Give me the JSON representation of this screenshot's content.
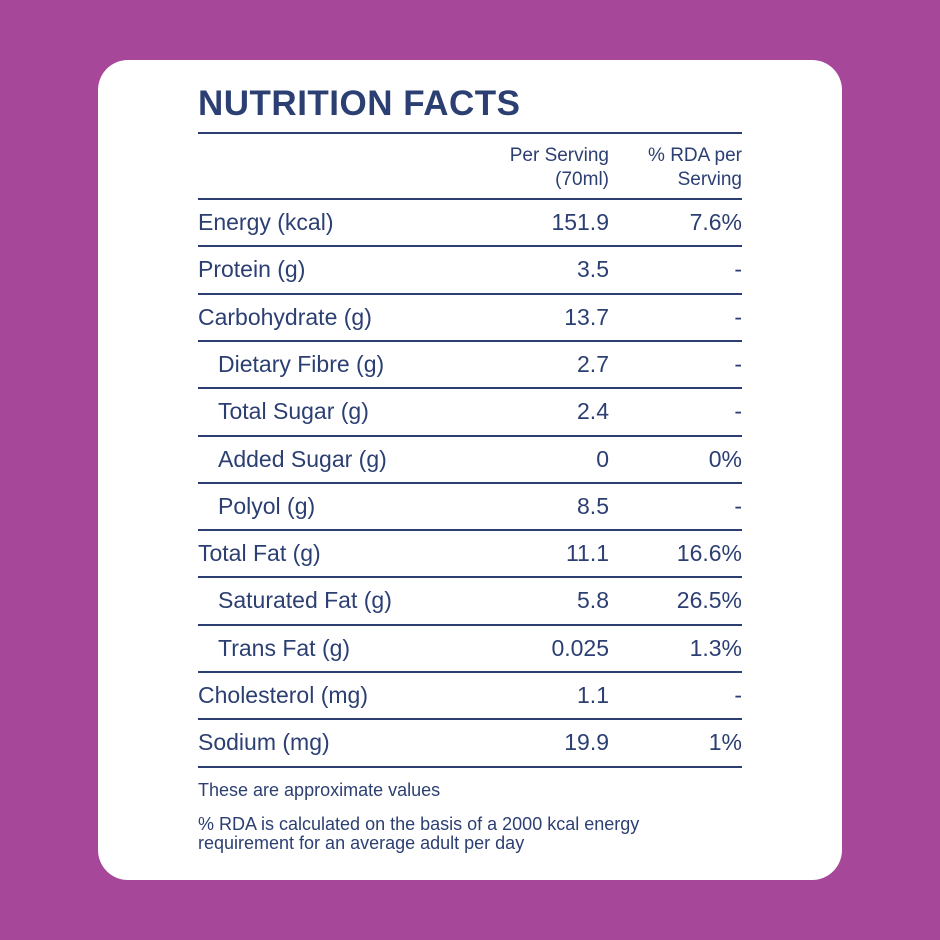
{
  "header": {
    "title": "NUTRITION FACTS"
  },
  "table": {
    "columns": [
      [
        "Per Serving",
        "(70ml)"
      ],
      [
        "% RDA per",
        "Serving"
      ]
    ],
    "rows": [
      {
        "label": "Energy (kcal)",
        "value": "151.9",
        "rda": "7.6%",
        "indent": false
      },
      {
        "label": "Protein (g)",
        "value": "3.5",
        "rda": "-",
        "indent": false
      },
      {
        "label": "Carbohydrate (g)",
        "value": "13.7",
        "rda": "-",
        "indent": false
      },
      {
        "label": "Dietary Fibre (g)",
        "value": "2.7",
        "rda": "-",
        "indent": true
      },
      {
        "label": "Total Sugar (g)",
        "value": "2.4",
        "rda": "-",
        "indent": true
      },
      {
        "label": "Added Sugar (g)",
        "value": "0",
        "rda": "0%",
        "indent": true
      },
      {
        "label": "Polyol (g)",
        "value": "8.5",
        "rda": "-",
        "indent": true
      },
      {
        "label": "Total Fat (g)",
        "value": "11.1",
        "rda": "16.6%",
        "indent": false
      },
      {
        "label": "Saturated Fat (g)",
        "value": "5.8",
        "rda": "26.5%",
        "indent": true
      },
      {
        "label": "Trans Fat (g)",
        "value": "0.025",
        "rda": "1.3%",
        "indent": true
      },
      {
        "label": "Cholesterol (mg)",
        "value": "1.1",
        "rda": "-",
        "indent": false
      },
      {
        "label": "Sodium (mg)",
        "value": "19.9",
        "rda": "1%",
        "indent": false
      }
    ]
  },
  "notes": [
    [
      "These are approximate values"
    ],
    [
      "%  RDA is calculated on the basis of a 2000 kcal energy",
      "requirement for an average adult per day"
    ]
  ]
}
